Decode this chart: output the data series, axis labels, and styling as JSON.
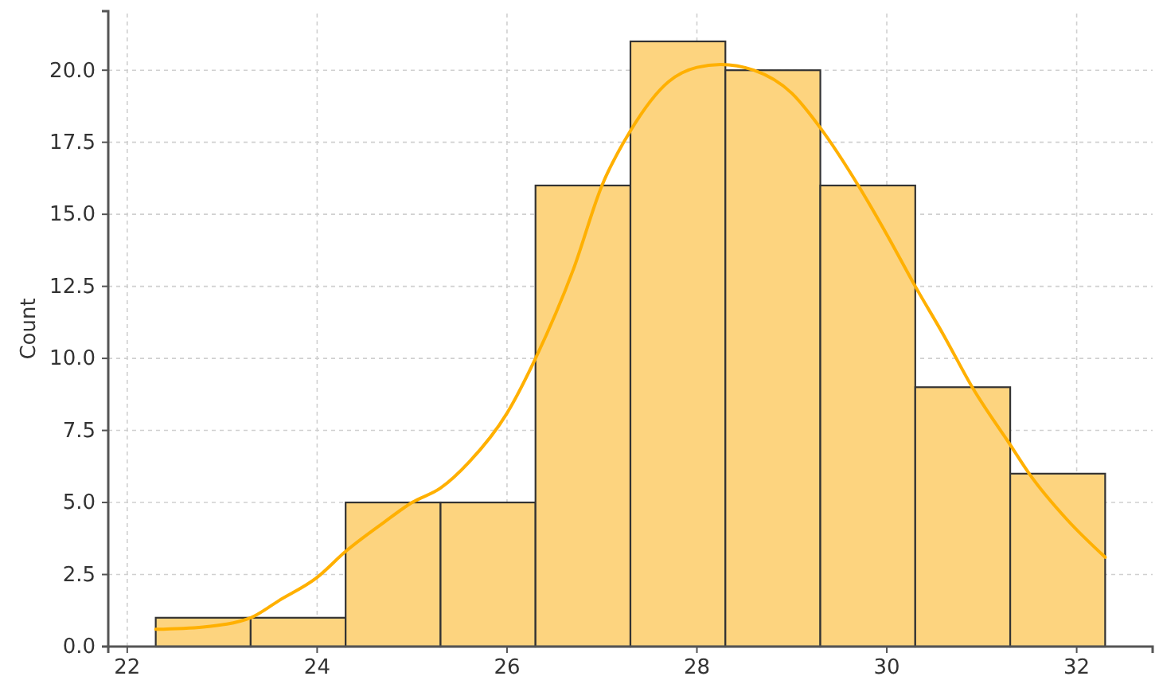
{
  "chart_data": {
    "type": "histogram",
    "ylabel": "Count",
    "series": [
      {
        "type": "histogram",
        "color": "#fdd47f",
        "bins": [
          22.3,
          23.3,
          24.3,
          25.3,
          26.3,
          27.3,
          28.3,
          29.3,
          30.3,
          31.3,
          32.3
        ],
        "values": [
          1,
          1,
          5,
          5,
          16,
          21,
          20,
          16,
          9,
          6
        ]
      },
      {
        "type": "line",
        "color": "#ffb000",
        "x": [
          22.3,
          22.8,
          23.3,
          23.6,
          24.0,
          24.3,
          24.7,
          25.0,
          25.3,
          25.6,
          26.0,
          26.3,
          26.7,
          27.0,
          27.3,
          27.7,
          28.0,
          28.25,
          28.6,
          29.0,
          29.3,
          29.7,
          30.0,
          30.3,
          30.6,
          30.9,
          31.3,
          31.5,
          31.9,
          32.3
        ],
        "values": [
          0.6,
          0.68,
          1.0,
          1.6,
          2.4,
          3.3,
          4.3,
          5.0,
          5.5,
          6.4,
          8.1,
          10.0,
          13.1,
          16.0,
          17.9,
          19.6,
          20.1,
          20.2,
          20.0,
          19.2,
          18.0,
          16.0,
          14.3,
          12.5,
          10.8,
          9.0,
          7.0,
          6.0,
          4.4,
          3.1
        ]
      }
    ],
    "xlim": [
      21.8,
      32.8
    ],
    "xticks": [
      22,
      24,
      26,
      28,
      30,
      32
    ],
    "ylim": [
      0,
      22.05
    ],
    "yticks": [
      {
        "value": 0,
        "label": "0.0"
      },
      {
        "value": 2.5,
        "label": "2.5"
      },
      {
        "value": 5,
        "label": "5.0"
      },
      {
        "value": 7.5,
        "label": "7.5"
      },
      {
        "value": 10,
        "label": "10.0"
      },
      {
        "value": 12.5,
        "label": "12.5"
      },
      {
        "value": 15,
        "label": "15.0"
      },
      {
        "value": 17.5,
        "label": "17.5"
      },
      {
        "value": 20,
        "label": "20.0"
      }
    ],
    "grid": true
  }
}
